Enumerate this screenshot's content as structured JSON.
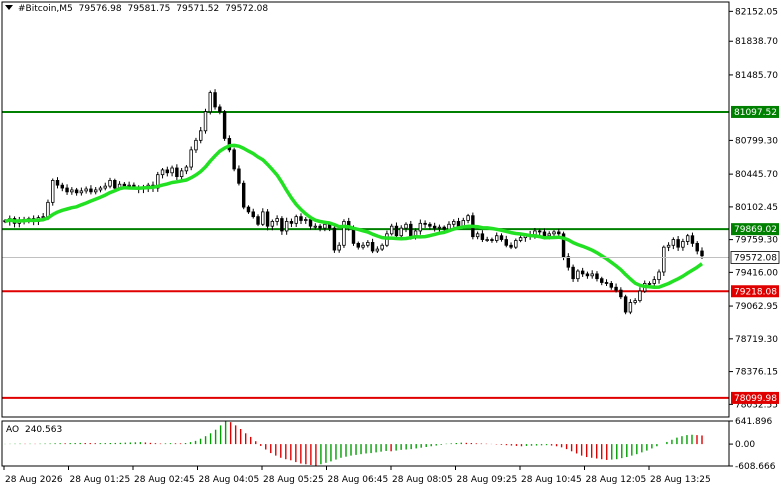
{
  "header": {
    "symbol": "#Bitcoin,M5",
    "open": "79576.98",
    "high": "79581.75",
    "low": "79571.52",
    "close": "79572.08"
  },
  "indicator": {
    "name": "AO",
    "value": "240.563",
    "axis_labels": [
      "641.896",
      "0.00",
      "-608.666"
    ]
  },
  "colors": {
    "background": "#ffffff",
    "candles": "#000000",
    "moving_average": "#22e022",
    "level_green": "#008000",
    "level_red": "#e00000",
    "ao_up": "#00a000",
    "ao_down": "#e00000",
    "label_green_bg": "#008000",
    "label_red_bg": "#e00000"
  },
  "chart_data": {
    "type": "candlestick",
    "y_range": [
      77900,
      82250
    ],
    "y_tick_labels": [
      "82152.05",
      "81838.70",
      "81485.70",
      "80799.30",
      "80445.70",
      "80102.45",
      "79759.30",
      "79416.00",
      "79062.95",
      "78719.30",
      "78376.15",
      "78032.55"
    ],
    "x_tick_labels": [
      "28 Aug 2026",
      "28 Aug 01:25",
      "28 Aug 02:45",
      "28 Aug 04:05",
      "28 Aug 05:25",
      "28 Aug 06:45",
      "28 Aug 08:05",
      "28 Aug 09:25",
      "28 Aug 10:45",
      "28 Aug 12:05",
      "28 Aug 13:25"
    ],
    "levels": [
      {
        "price": 81097.52,
        "label": "81097.52",
        "color": "green"
      },
      {
        "price": 79869.02,
        "label": "79869.02",
        "color": "green"
      },
      {
        "price": 79218.08,
        "label": "79218.08",
        "color": "red"
      },
      {
        "price": 78099.98,
        "label": "78099.98",
        "color": "red"
      }
    ],
    "current_price": {
      "price": 79572.08,
      "label": "79572.08"
    },
    "close_series": [
      79950,
      79980,
      79930,
      79960,
      79970,
      79980,
      79950,
      79990,
      80000,
      80150,
      80380,
      80330,
      80300,
      80260,
      80280,
      80250,
      80270,
      80290,
      80260,
      80280,
      80300,
      80320,
      80380,
      80300,
      80340,
      80320,
      80330,
      80310,
      80290,
      80300,
      80330,
      80300,
      80440,
      80490,
      80460,
      80510,
      80420,
      80480,
      80520,
      80700,
      80800,
      80900,
      81100,
      81300,
      81150,
      81100,
      80820,
      80700,
      80500,
      80350,
      80100,
      80050,
      80000,
      79920,
      80050,
      79900,
      79950,
      79980,
      79850,
      79950,
      79930,
      80000,
      79960,
      79970,
      79900,
      79900,
      79880,
      79920,
      79880,
      79650,
      79700,
      79950,
      79880,
      79720,
      79680,
      79700,
      79730,
      79640,
      79660,
      79700,
      79820,
      79900,
      79800,
      79880,
      79920,
      79800,
      79850,
      79930,
      79920,
      79900,
      79880,
      79890,
      79870,
      79920,
      79950,
      79900,
      79960,
      80010,
      79790,
      79820,
      79760,
      79760,
      79750,
      79800,
      79760,
      79700,
      79680,
      79750,
      79780,
      79800,
      79810,
      79850,
      79840,
      79800,
      79820,
      79840,
      79820,
      79580,
      79470,
      79350,
      79430,
      79400,
      79380,
      79400,
      79350,
      79310,
      79300,
      79260,
      79230,
      79160,
      79000,
      79100,
      79120,
      79220,
      79300,
      79300,
      79340,
      79420,
      79680,
      79700,
      79760,
      79680,
      79740,
      79800,
      79720,
      79640,
      79590
    ],
    "ao_values": [
      5,
      8,
      10,
      12,
      9,
      10,
      8,
      11,
      14,
      16,
      22,
      24,
      22,
      28,
      30,
      32,
      30,
      28,
      25,
      26,
      28,
      30,
      32,
      35,
      40,
      45,
      50,
      55,
      45,
      35,
      25,
      15,
      20,
      25,
      22,
      20,
      30,
      55,
      90,
      150,
      220,
      300,
      400,
      520,
      640,
      610,
      520,
      420,
      300,
      200,
      80,
      -50,
      -150,
      -250,
      -320,
      -380,
      -420,
      -450,
      -500,
      -540,
      -560,
      -580,
      -600,
      -560,
      -520,
      -480,
      -430,
      -380,
      -350,
      -320,
      -300,
      -280,
      -260,
      -250,
      -230,
      -210,
      -190,
      -200,
      -180,
      -160,
      -150,
      -140,
      -120,
      -100,
      -80,
      -60,
      -40,
      -20,
      10,
      20,
      30,
      40,
      35,
      30,
      20,
      15,
      10,
      5,
      -10,
      -20,
      -30,
      -40,
      -50,
      -60,
      -50,
      -45,
      -40,
      -35,
      -30,
      -40,
      -60,
      -90,
      -140,
      -200,
      -260,
      -320,
      -360,
      -380,
      -400,
      -420,
      -440,
      -430,
      -420,
      -390,
      -360,
      -320,
      -280,
      -230,
      -180,
      -120,
      -60,
      0,
      60,
      120,
      180,
      220,
      250,
      260,
      250,
      240
    ]
  }
}
